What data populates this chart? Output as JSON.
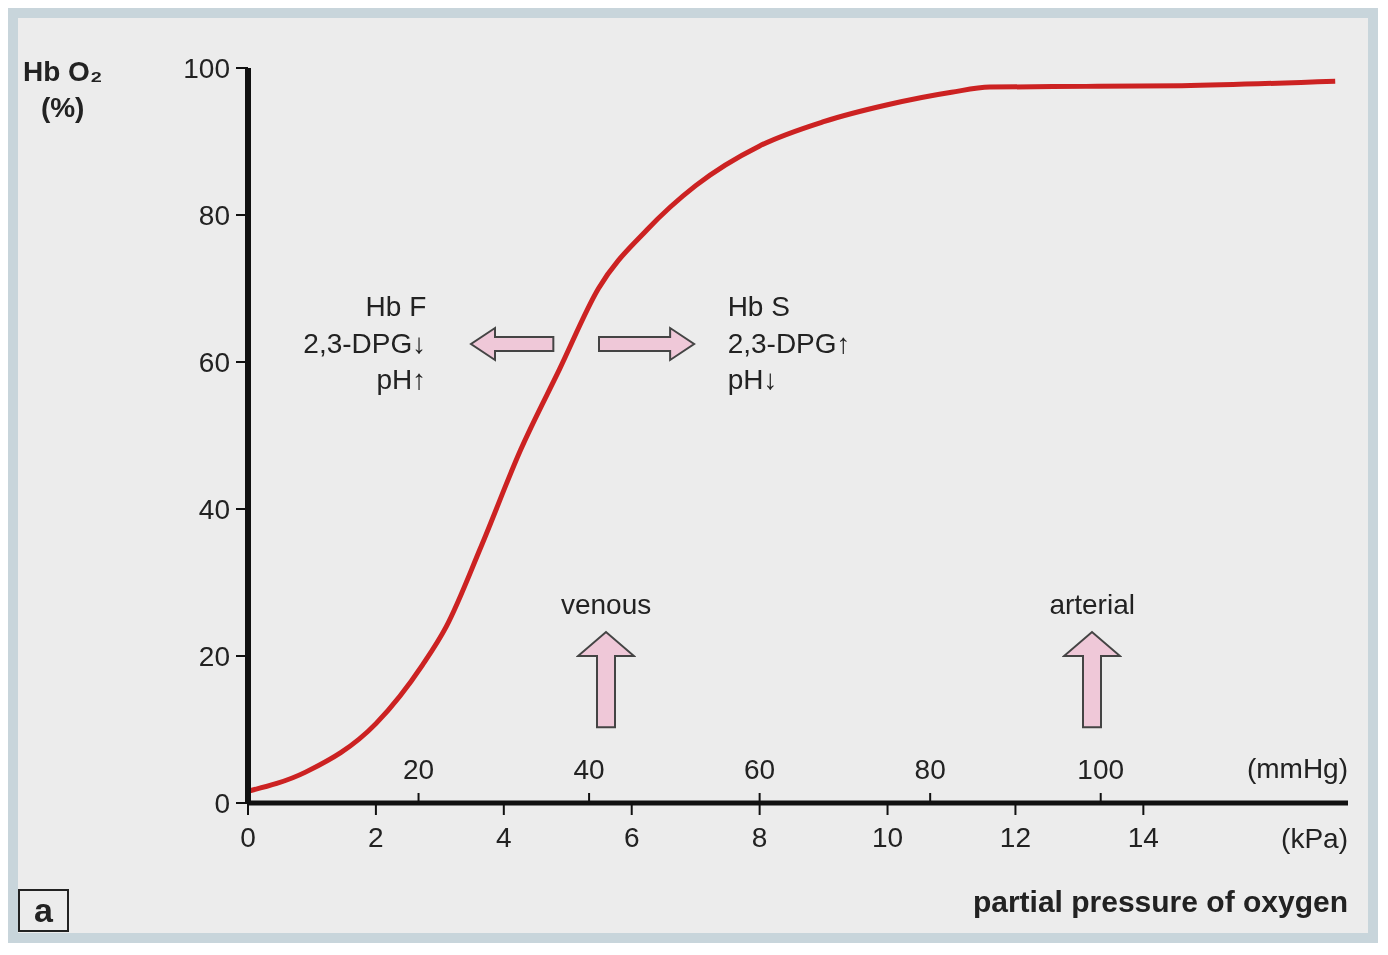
{
  "chart_data": {
    "type": "line",
    "ylabel": "Hb O₂ (%)",
    "xlabel": "(kPa)",
    "x2label": "(mmHg)",
    "x": [
      0,
      0.9,
      2,
      2.73,
      3.1,
      3.65,
      4.26,
      4.87,
      5.48,
      6.24,
      7,
      8,
      9,
      10,
      11,
      11.6,
      13.1,
      14.6,
      17
    ],
    "series": [
      {
        "color": "#cc2222",
        "values": [
          1.6,
          4.2,
          10.8,
          18.8,
          24,
          35,
          48,
          59,
          70,
          78,
          84,
          89.4,
          92.7,
          95,
          96.7,
          97.4,
          97.5,
          97.6,
          98.2
        ]
      }
    ],
    "xlim": [
      0,
      17.2
    ],
    "xticks": [
      0,
      2,
      4,
      6,
      8,
      10,
      12,
      14
    ],
    "x2lim": [
      0,
      129
    ],
    "x2ticks": [
      20,
      40,
      60,
      80,
      100
    ],
    "ylim": [
      0,
      100
    ],
    "yticks": [
      0,
      20,
      40,
      60,
      80,
      100
    ],
    "grid": false,
    "legend": false,
    "marker": "none",
    "line_style": "solid",
    "annotations": [
      "Hb F",
      "2,3-DPG↓",
      "pH↑",
      "Hb S",
      "2,3-DPG↑",
      "pH↓",
      "venous",
      "arterial",
      "partial pressure of oxygen",
      "a"
    ]
  }
}
